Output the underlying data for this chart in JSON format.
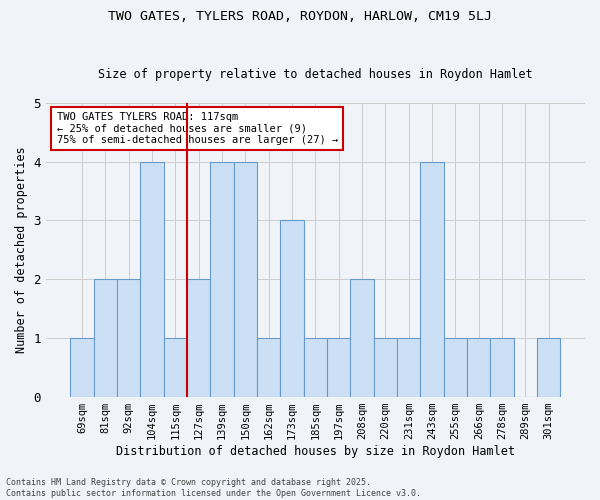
{
  "title": "TWO GATES, TYLERS ROAD, ROYDON, HARLOW, CM19 5LJ",
  "subtitle": "Size of property relative to detached houses in Roydon Hamlet",
  "xlabel": "Distribution of detached houses by size in Roydon Hamlet",
  "ylabel": "Number of detached properties",
  "footer1": "Contains HM Land Registry data © Crown copyright and database right 2025.",
  "footer2": "Contains public sector information licensed under the Open Government Licence v3.0.",
  "annotation_title": "TWO GATES TYLERS ROAD: 117sqm",
  "annotation_line1": "← 25% of detached houses are smaller (9)",
  "annotation_line2": "75% of semi-detached houses are larger (27) →",
  "subject_bin": "115sqm",
  "categories": [
    "69sqm",
    "81sqm",
    "92sqm",
    "104sqm",
    "115sqm",
    "127sqm",
    "139sqm",
    "150sqm",
    "162sqm",
    "173sqm",
    "185sqm",
    "197sqm",
    "208sqm",
    "220sqm",
    "231sqm",
    "243sqm",
    "255sqm",
    "266sqm",
    "278sqm",
    "289sqm",
    "301sqm"
  ],
  "values": [
    1,
    2,
    2,
    4,
    1,
    2,
    4,
    4,
    1,
    3,
    1,
    1,
    2,
    1,
    1,
    4,
    1,
    1,
    1,
    0,
    1
  ],
  "bar_color": "#cce0f5",
  "bar_edge_color": "#6699cc",
  "subject_line_color": "#cc0000",
  "annotation_box_color": "#ffffff",
  "annotation_box_edge": "#cc0000",
  "grid_color": "#cccccc",
  "background_color": "#f0f4f8",
  "ylim": [
    0,
    5
  ],
  "yticks": [
    0,
    1,
    2,
    3,
    4,
    5
  ]
}
